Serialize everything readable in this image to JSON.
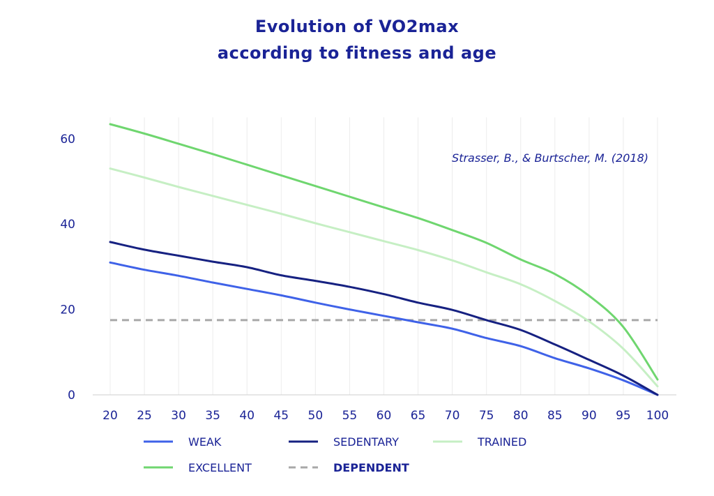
{
  "chart_data": {
    "type": "line",
    "title": "Evolution of VO2max",
    "subtitle": "according to fitness and age",
    "annotation": "Strasser, B., & Burtscher, M. (2018)",
    "xlabel": "",
    "ylabel": "",
    "x": [
      20,
      25,
      30,
      35,
      40,
      45,
      50,
      55,
      60,
      65,
      70,
      75,
      80,
      85,
      90,
      95,
      100
    ],
    "y_ticks": [
      0,
      20,
      40,
      60
    ],
    "ylim": [
      0,
      65
    ],
    "grid": "vertical",
    "legend_position": "bottom",
    "series": [
      {
        "name": "WEAK",
        "color": "#3f62e8",
        "dash": false,
        "values": [
          31,
          29.3,
          27.9,
          26.3,
          24.8,
          23.3,
          21.6,
          20.0,
          18.5,
          17.0,
          15.5,
          13.3,
          11.4,
          8.6,
          6.2,
          3.4,
          0
        ]
      },
      {
        "name": "SEDENTARY",
        "color": "#162181",
        "dash": false,
        "values": [
          35.8,
          34.0,
          32.6,
          31.2,
          29.9,
          28.0,
          26.7,
          25.3,
          23.6,
          21.6,
          19.9,
          17.5,
          15.2,
          11.8,
          8.2,
          4.5,
          0
        ]
      },
      {
        "name": "TRAINED",
        "color": "#c6efc4",
        "dash": false,
        "values": [
          53,
          50.9,
          48.7,
          46.6,
          44.5,
          42.4,
          40.2,
          38.1,
          36.0,
          33.9,
          31.5,
          28.7,
          25.9,
          22.0,
          17.2,
          10.8,
          2.0
        ]
      },
      {
        "name": "EXCELLENT",
        "color": "#6fd66f",
        "dash": false,
        "values": [
          63.4,
          61.2,
          58.8,
          56.4,
          53.9,
          51.4,
          48.9,
          46.4,
          43.9,
          41.4,
          38.6,
          35.6,
          31.7,
          28.3,
          23.2,
          15.9,
          3.6
        ]
      },
      {
        "name": "DEPENDENT",
        "color": "#a8a8a8",
        "dash": true,
        "values": [
          17.5,
          17.5,
          17.5,
          17.5,
          17.5,
          17.5,
          17.5,
          17.5,
          17.5,
          17.5,
          17.5,
          17.5,
          17.5,
          17.5,
          17.5,
          17.5,
          17.5
        ]
      }
    ]
  }
}
